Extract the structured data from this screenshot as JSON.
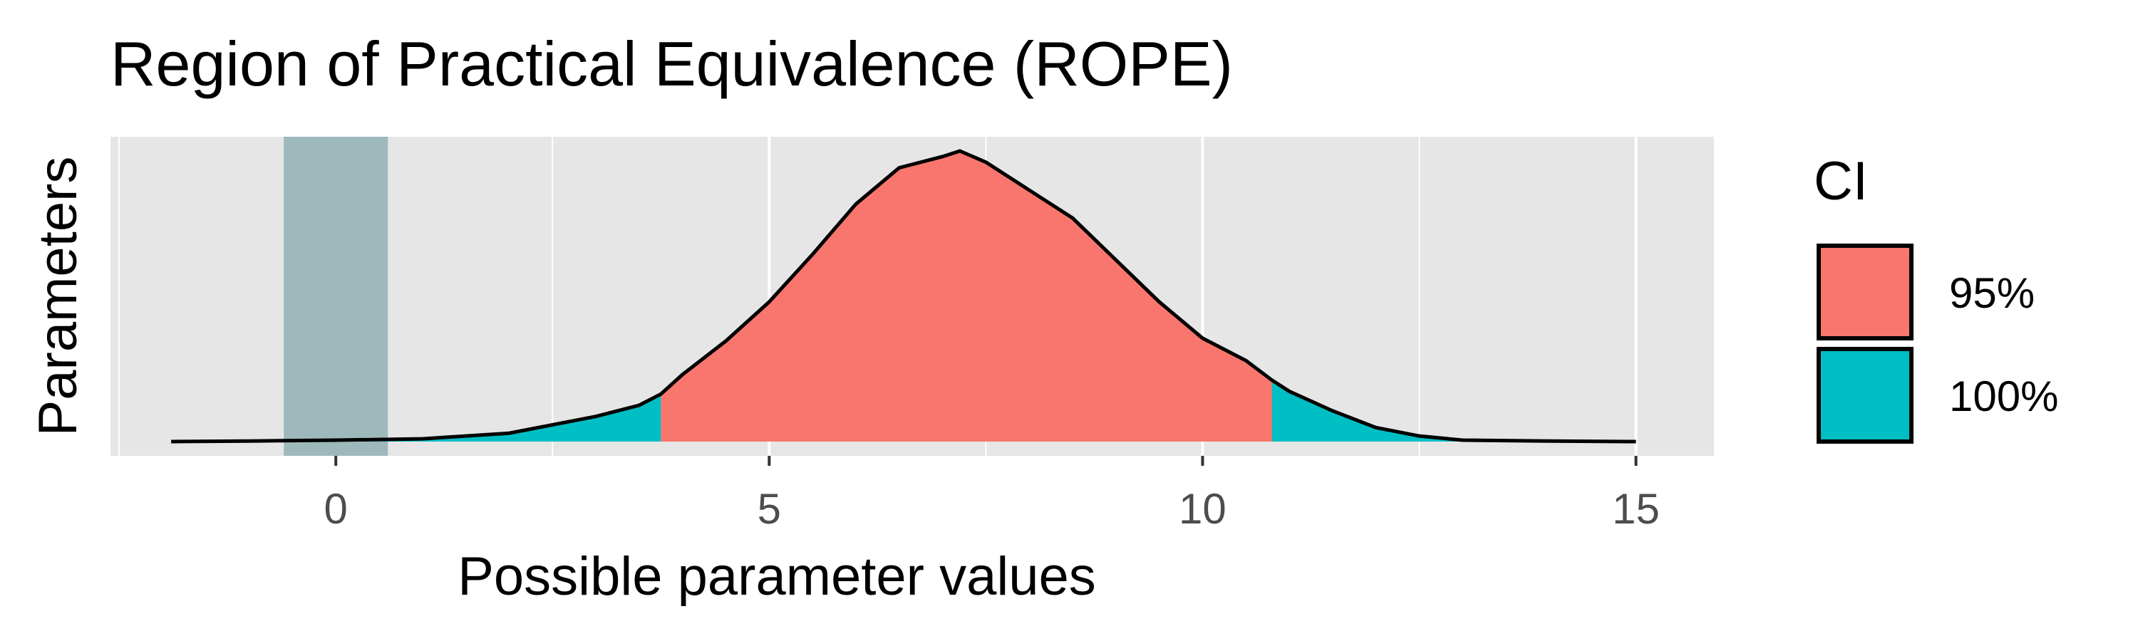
{
  "chart_data": {
    "type": "area",
    "title": "Region of Practical Equivalence (ROPE)",
    "xlabel": "Possible parameter values",
    "ylabel": "Parameters",
    "xlim": [
      -2.6,
      15.9
    ],
    "ylim": [
      -0.04,
      1.1
    ],
    "x_ticks": [
      0,
      5,
      10,
      15
    ],
    "x_tick_labels": [
      "0",
      "5",
      "10",
      "15"
    ],
    "x_minor_ticks": [
      -2.5,
      2.5,
      7.5,
      12.5
    ],
    "grid": true,
    "legend": {
      "title": "CI",
      "placement": "right",
      "entries": [
        {
          "label": "95%",
          "color": "#F8766D"
        },
        {
          "label": "100%",
          "color": "#00BFC4"
        }
      ]
    },
    "rope": {
      "low": -0.6,
      "high": 0.6,
      "color": "#9DB9BB"
    },
    "intervals": [
      {
        "name": "95%",
        "low": 3.75,
        "high": 10.8,
        "color": "#F8766D"
      },
      {
        "name": "100%",
        "low": -1.9,
        "high": 15.0,
        "color": "#00BFC4"
      }
    ],
    "density": {
      "x": [
        -1.9,
        -1.0,
        0.0,
        1.0,
        2.0,
        2.5,
        3.0,
        3.5,
        3.75,
        4.0,
        4.5,
        5.0,
        5.5,
        6.0,
        6.5,
        7.0,
        7.2,
        7.5,
        8.0,
        8.5,
        9.0,
        9.5,
        10.0,
        10.5,
        10.8,
        11.0,
        11.5,
        12.0,
        12.5,
        13.0,
        14.0,
        15.0
      ],
      "y": [
        0.0,
        0.002,
        0.005,
        0.01,
        0.03,
        0.06,
        0.09,
        0.13,
        0.17,
        0.24,
        0.36,
        0.5,
        0.67,
        0.85,
        0.98,
        1.02,
        1.04,
        1.0,
        0.9,
        0.8,
        0.65,
        0.5,
        0.37,
        0.29,
        0.22,
        0.18,
        0.11,
        0.05,
        0.02,
        0.005,
        0.002,
        0.0
      ]
    },
    "style": {
      "panel_background": "#E6E6E6",
      "grid_color": "#FFFFFF",
      "line_color": "#000000"
    }
  }
}
